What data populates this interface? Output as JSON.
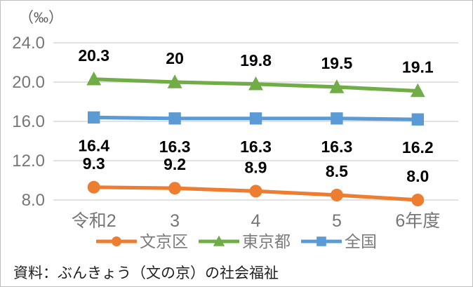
{
  "chart_data": {
    "type": "line",
    "unit_label": "（‰）",
    "categories": [
      "令和2",
      "3",
      "4",
      "5",
      "6年度"
    ],
    "series": [
      {
        "name": "文京区",
        "values": [
          9.3,
          9.2,
          8.9,
          8.5,
          8.0
        ],
        "labels": [
          "9.3",
          "9.2",
          "8.9",
          "8.5",
          "8.0"
        ],
        "color": "#ED7D31",
        "marker": "circle",
        "label_position": "above"
      },
      {
        "name": "東京都",
        "values": [
          20.3,
          20,
          19.8,
          19.5,
          19.1
        ],
        "labels": [
          "20.3",
          "20",
          "19.8",
          "19.5",
          "19.1"
        ],
        "color": "#70AD47",
        "marker": "triangle",
        "label_position": "above"
      },
      {
        "name": "全国",
        "values": [
          16.4,
          16.3,
          16.3,
          16.3,
          16.2
        ],
        "labels": [
          "16.4",
          "16.3",
          "16.3",
          "16.3",
          "16.2"
        ],
        "color": "#5B9BD5",
        "marker": "square",
        "label_position": "below"
      }
    ],
    "y_axis": {
      "min": 8.0,
      "max": 24.0,
      "ticks": [
        24.0,
        20.0,
        16.0,
        12.0,
        8.0
      ],
      "tick_labels": [
        "24.0",
        "20.0",
        "16.0",
        "12.0",
        "8.0"
      ]
    },
    "grid": true,
    "legend_position": "bottom"
  },
  "source_note": "資料：ぶんきょう（文の京）の社会福祉",
  "colors": {
    "axis_text": "#767676",
    "grid": "#d9d9d9",
    "data_label_text": "#000000",
    "legend_text": "#7b7b7b",
    "border": "#bfbfbf"
  }
}
